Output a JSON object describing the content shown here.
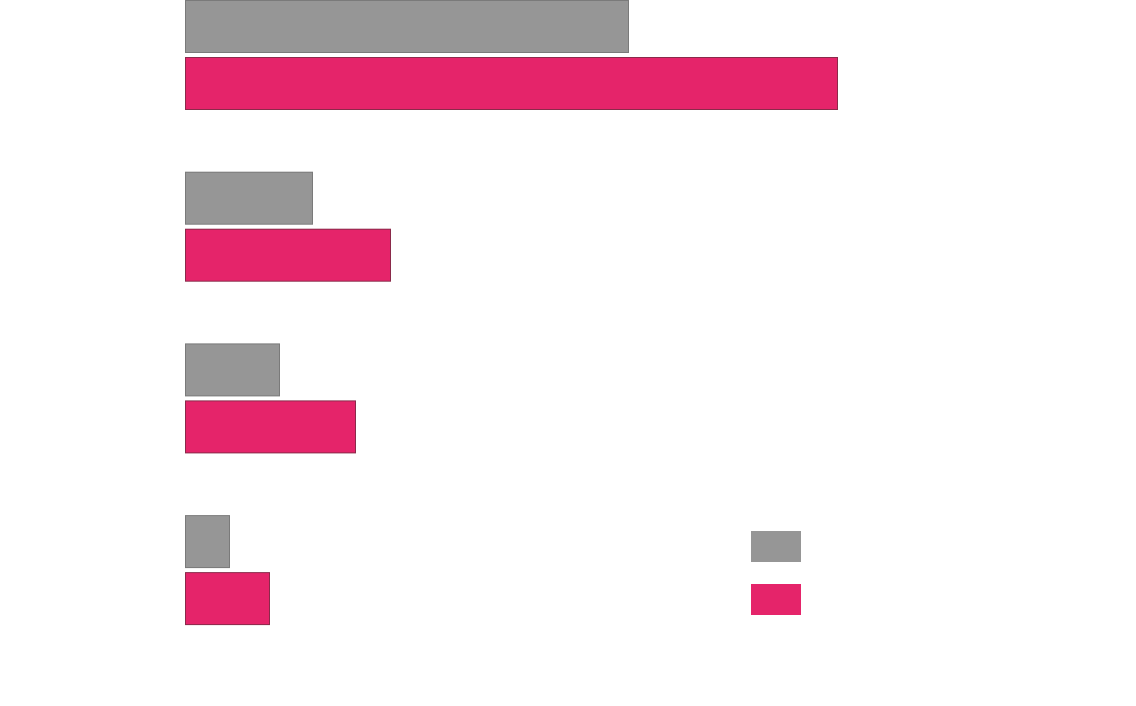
{
  "chart_data": {
    "type": "bar",
    "orientation": "horizontal",
    "categories": [
      "",
      "",
      "",
      ""
    ],
    "series": [
      {
        "color": "#969696",
        "values": [
          443,
          127,
          94,
          44
        ]
      },
      {
        "color": "#e5246a",
        "values": [
          652,
          205,
          170,
          84
        ]
      }
    ],
    "xlim": [
      0,
      951
    ],
    "grid": false,
    "axes_visible": false,
    "legend": "bottom-right",
    "title": "",
    "xlabel": "",
    "ylabel": ""
  }
}
